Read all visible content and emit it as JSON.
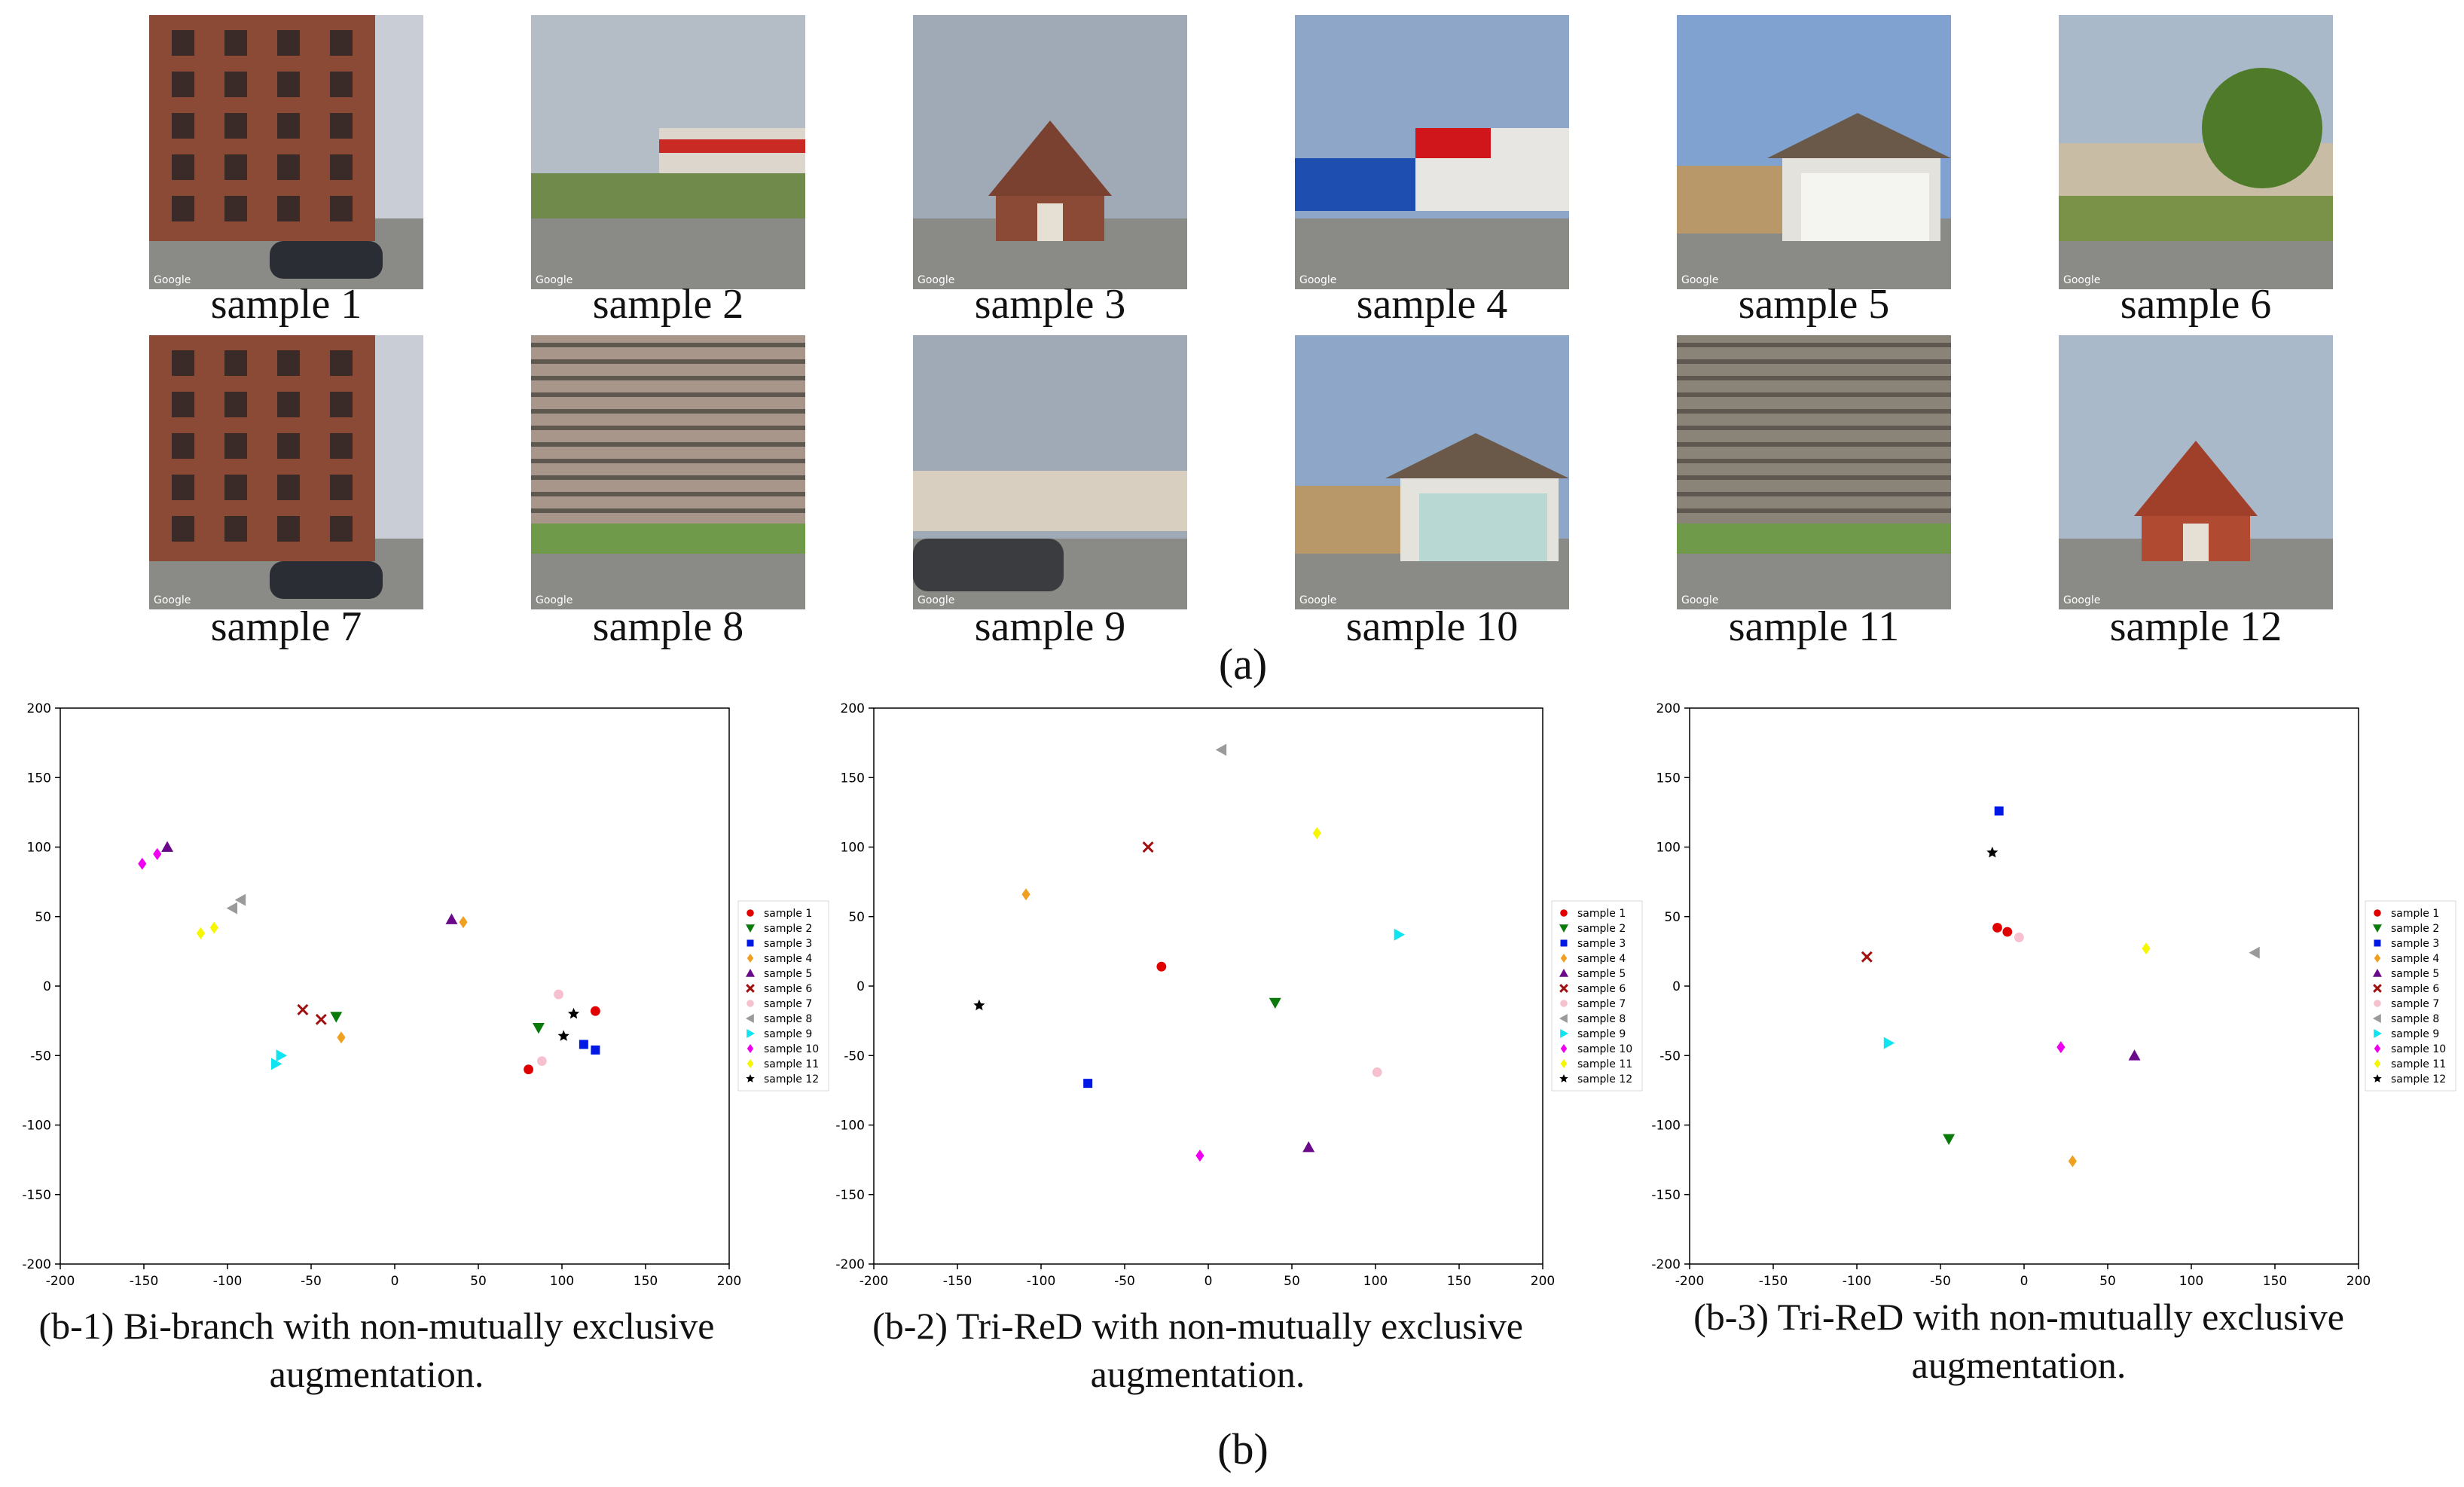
{
  "colors": {
    "sample 1": "#e00000",
    "sample 2": "#0a7a0a",
    "sample 3": "#0018e6",
    "sample 4": "#f0a020",
    "sample 5": "#6a0a8a",
    "sample 6": "#a01010",
    "sample 7": "#f6c0cf",
    "sample 8": "#9a9a9a",
    "sample 9": "#10e4f0",
    "sample 10": "#f000f0",
    "sample 11": "#f6f600",
    "sample 12": "#000000"
  },
  "photos": [
    {
      "caption": "sample 1",
      "scene": "brick-building"
    },
    {
      "caption": "sample 2",
      "scene": "bottle-depot"
    },
    {
      "caption": "sample 3",
      "scene": "chapel"
    },
    {
      "caption": "sample 4",
      "scene": "kfc-store"
    },
    {
      "caption": "sample 5",
      "scene": "garage"
    },
    {
      "caption": "sample 6",
      "scene": "tree-yard"
    },
    {
      "caption": "sample 7",
      "scene": "brick-building"
    },
    {
      "caption": "sample 8",
      "scene": "apartment-tower"
    },
    {
      "caption": "sample 9",
      "scene": "flat-building"
    },
    {
      "caption": "sample 10",
      "scene": "garage-white"
    },
    {
      "caption": "sample 11",
      "scene": "highrise"
    },
    {
      "caption": "sample 12",
      "scene": "red-chapel"
    }
  ],
  "photo_badge": "Google",
  "part_labels": {
    "a": "(a)",
    "b": "(b)"
  },
  "subcaptions": {
    "b1": {
      "line1": "(b-1) Bi-branch with non-mutually exclusive",
      "line2": "augmentation."
    },
    "b2": {
      "line1": "(b-2) Tri-ReD with non-mutually exclusive",
      "line2": "augmentation."
    },
    "b3": {
      "line1": "(b-3) Tri-ReD with non-mutually exclusive",
      "line2": "augmentation."
    }
  },
  "chart_data": [
    {
      "type": "scatter",
      "xlim": [
        -200,
        200
      ],
      "ylim": [
        -200,
        200
      ],
      "xticks": [
        -200,
        -150,
        -100,
        -50,
        0,
        50,
        100,
        150,
        200
      ],
      "yticks": [
        -200,
        -150,
        -100,
        -50,
        0,
        50,
        100,
        150,
        200
      ],
      "legend": "right",
      "series": [
        {
          "name": "sample 1",
          "marker": "circle",
          "points": [
            [
              80,
              -60
            ],
            [
              120,
              -18
            ]
          ]
        },
        {
          "name": "sample 2",
          "marker": "tri-down",
          "points": [
            [
              -35,
              -22
            ],
            [
              86,
              -30
            ]
          ]
        },
        {
          "name": "sample 3",
          "marker": "square",
          "points": [
            [
              113,
              -42
            ],
            [
              120,
              -46
            ]
          ]
        },
        {
          "name": "sample 4",
          "marker": "diamond",
          "points": [
            [
              -32,
              -37
            ],
            [
              41,
              46
            ]
          ]
        },
        {
          "name": "sample 5",
          "marker": "tri-up",
          "points": [
            [
              -136,
              100
            ],
            [
              34,
              48
            ]
          ]
        },
        {
          "name": "sample 6",
          "marker": "x",
          "points": [
            [
              -55,
              -17
            ],
            [
              -44,
              -24
            ]
          ]
        },
        {
          "name": "sample 7",
          "marker": "circle",
          "points": [
            [
              98,
              -6
            ],
            [
              88,
              -54
            ]
          ]
        },
        {
          "name": "sample 8",
          "marker": "tri-left",
          "points": [
            [
              -92,
              62
            ],
            [
              -97,
              56
            ]
          ]
        },
        {
          "name": "sample 9",
          "marker": "tri-right",
          "points": [
            [
              -68,
              -50
            ],
            [
              -71,
              -56
            ]
          ]
        },
        {
          "name": "sample 10",
          "marker": "diamond",
          "points": [
            [
              -151,
              88
            ],
            [
              -142,
              95
            ]
          ]
        },
        {
          "name": "sample 11",
          "marker": "diamond",
          "points": [
            [
              -108,
              42
            ],
            [
              -116,
              38
            ]
          ]
        },
        {
          "name": "sample 12",
          "marker": "star",
          "points": [
            [
              107,
              -20
            ],
            [
              101,
              -36
            ]
          ]
        }
      ]
    },
    {
      "type": "scatter",
      "xlim": [
        -200,
        200
      ],
      "ylim": [
        -200,
        200
      ],
      "xticks": [
        -200,
        -150,
        -100,
        -50,
        0,
        50,
        100,
        150,
        200
      ],
      "yticks": [
        -200,
        -150,
        -100,
        -50,
        0,
        50,
        100,
        150,
        200
      ],
      "legend": "right",
      "series": [
        {
          "name": "sample 1",
          "marker": "circle",
          "points": [
            [
              -28,
              14
            ]
          ]
        },
        {
          "name": "sample 2",
          "marker": "tri-down",
          "points": [
            [
              40,
              -12
            ]
          ]
        },
        {
          "name": "sample 3",
          "marker": "square",
          "points": [
            [
              -72,
              -70
            ]
          ]
        },
        {
          "name": "sample 4",
          "marker": "diamond",
          "points": [
            [
              -109,
              66
            ]
          ]
        },
        {
          "name": "sample 5",
          "marker": "tri-up",
          "points": [
            [
              60,
              -116
            ]
          ]
        },
        {
          "name": "sample 6",
          "marker": "x",
          "points": [
            [
              -36,
              100
            ]
          ]
        },
        {
          "name": "sample 7",
          "marker": "circle",
          "points": [
            [
              101,
              -62
            ]
          ]
        },
        {
          "name": "sample 8",
          "marker": "tri-left",
          "points": [
            [
              8,
              170
            ]
          ]
        },
        {
          "name": "sample 9",
          "marker": "tri-right",
          "points": [
            [
              114,
              37
            ]
          ]
        },
        {
          "name": "sample 10",
          "marker": "diamond",
          "points": [
            [
              -5,
              -122
            ]
          ]
        },
        {
          "name": "sample 11",
          "marker": "diamond",
          "points": [
            [
              65,
              110
            ]
          ]
        },
        {
          "name": "sample 12",
          "marker": "star",
          "points": [
            [
              -137,
              -14
            ]
          ]
        }
      ]
    },
    {
      "type": "scatter",
      "xlim": [
        -200,
        200
      ],
      "ylim": [
        -200,
        200
      ],
      "xticks": [
        -200,
        -150,
        -100,
        -50,
        0,
        50,
        100,
        150,
        200
      ],
      "yticks": [
        -200,
        -150,
        -100,
        -50,
        0,
        50,
        100,
        150,
        200
      ],
      "legend": "right",
      "series": [
        {
          "name": "sample 1",
          "marker": "circle",
          "points": [
            [
              -16,
              42
            ],
            [
              -10,
              39
            ]
          ]
        },
        {
          "name": "sample 2",
          "marker": "tri-down",
          "points": [
            [
              -45,
              -110
            ]
          ]
        },
        {
          "name": "sample 3",
          "marker": "square",
          "points": [
            [
              -15,
              126
            ]
          ]
        },
        {
          "name": "sample 4",
          "marker": "diamond",
          "points": [
            [
              29,
              -126
            ]
          ]
        },
        {
          "name": "sample 5",
          "marker": "tri-up",
          "points": [
            [
              66,
              -50
            ]
          ]
        },
        {
          "name": "sample 6",
          "marker": "x",
          "points": [
            [
              -94,
              21
            ]
          ]
        },
        {
          "name": "sample 7",
          "marker": "circle",
          "points": [
            [
              -3,
              35
            ]
          ]
        },
        {
          "name": "sample 8",
          "marker": "tri-left",
          "points": [
            [
              138,
              24
            ]
          ]
        },
        {
          "name": "sample 9",
          "marker": "tri-right",
          "points": [
            [
              -81,
              -41
            ]
          ]
        },
        {
          "name": "sample 10",
          "marker": "diamond",
          "points": [
            [
              22,
              -44
            ]
          ]
        },
        {
          "name": "sample 11",
          "marker": "diamond",
          "points": [
            [
              73,
              27
            ]
          ]
        },
        {
          "name": "sample 12",
          "marker": "star",
          "points": [
            [
              -19,
              96
            ]
          ]
        }
      ]
    }
  ]
}
